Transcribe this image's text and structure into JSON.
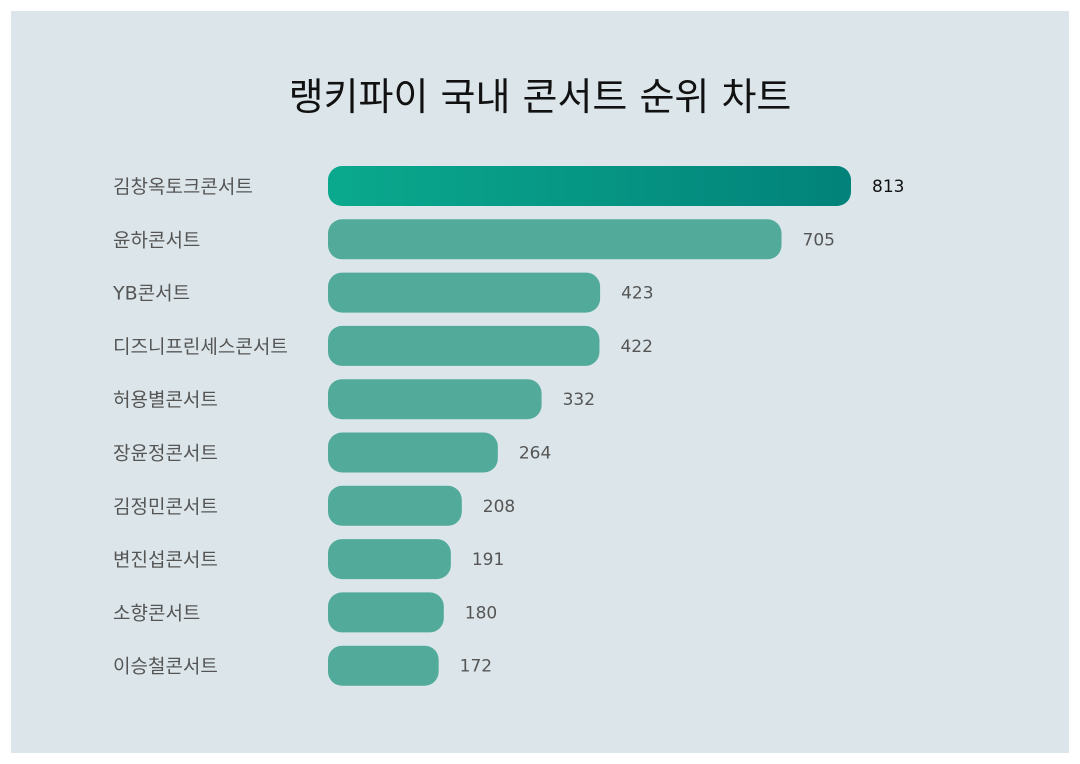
{
  "chart_data": {
    "type": "bar",
    "orientation": "horizontal",
    "title": "랭키파이 국내 콘서트 순위 차트",
    "categories": [
      "김창옥토크콘서트",
      "윤하콘서트",
      "YB콘서트",
      "디즈니프린세스콘서트",
      "허용별콘서트",
      "장윤정콘서트",
      "김정민콘서트",
      "변진섭콘서트",
      "소향콘서트",
      "이승철콘서트"
    ],
    "values": [
      813,
      705,
      423,
      422,
      332,
      264,
      208,
      191,
      180,
      172
    ],
    "xlim": [
      0,
      813
    ],
    "grid": false,
    "legend": "none",
    "colors": {
      "background": "#dce6ea",
      "top_bar_start": "#0aa98d",
      "top_bar_end": "#02827a",
      "bar": "#52ab9a"
    }
  }
}
